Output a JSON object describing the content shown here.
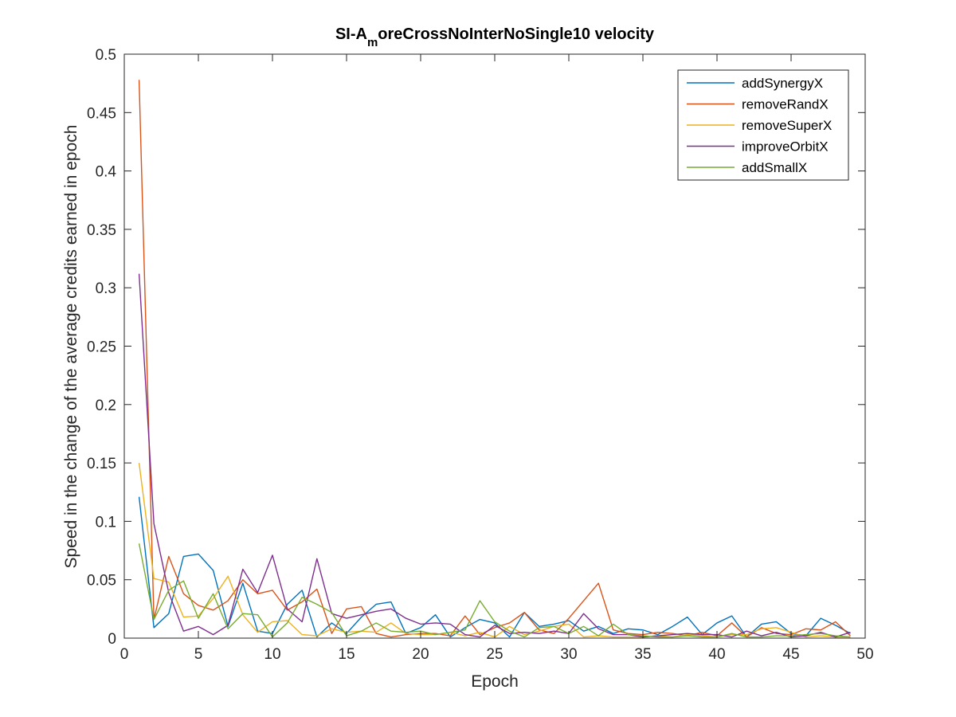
{
  "chart_data": {
    "type": "line",
    "title_main": "SI-A",
    "title_sub": "m",
    "title_rest": "oreCrossNoInterNoSingle10 velocity",
    "xlabel": "Epoch",
    "ylabel": "Speed in the change of the average credits earned in epoch",
    "xlim": [
      0,
      50
    ],
    "ylim": [
      0,
      0.5
    ],
    "xticks": [
      0,
      5,
      10,
      15,
      20,
      25,
      30,
      35,
      40,
      45,
      50
    ],
    "xtick_labels": [
      "0",
      "5",
      "10",
      "15",
      "20",
      "25",
      "30",
      "35",
      "40",
      "45",
      "50"
    ],
    "yticks": [
      0,
      0.05,
      0.1,
      0.15,
      0.2,
      0.25,
      0.3,
      0.35,
      0.4,
      0.45,
      0.5
    ],
    "ytick_labels": [
      "0",
      "0.05",
      "0.1",
      "0.15",
      "0.2",
      "0.25",
      "0.3",
      "0.35",
      "0.4",
      "0.45",
      "0.5"
    ],
    "grid": false,
    "legend_position": "top-right",
    "x": [
      1,
      2,
      3,
      4,
      5,
      6,
      7,
      8,
      9,
      10,
      11,
      12,
      13,
      14,
      15,
      16,
      17,
      18,
      19,
      20,
      21,
      22,
      23,
      24,
      25,
      26,
      27,
      28,
      29,
      30,
      31,
      32,
      33,
      34,
      35,
      36,
      37,
      38,
      39,
      40,
      41,
      42,
      43,
      44,
      45,
      46,
      47,
      48,
      49
    ],
    "series": [
      {
        "name": "addSynergyX",
        "color": "#0072BD",
        "values": [
          0.121,
          0.009,
          0.021,
          0.07,
          0.072,
          0.058,
          0.01,
          0.047,
          0.006,
          0.004,
          0.029,
          0.041,
          0.001,
          0.013,
          0.004,
          0.018,
          0.029,
          0.031,
          0.004,
          0.009,
          0.02,
          0.001,
          0.009,
          0.016,
          0.013,
          0.001,
          0.022,
          0.01,
          0.012,
          0.015,
          0.006,
          0.01,
          0.004,
          0.008,
          0.007,
          0.003,
          0.01,
          0.018,
          0.003,
          0.013,
          0.019,
          0.001,
          0.012,
          0.014,
          0.004,
          0.002,
          0.017,
          0.011,
          0.004
        ]
      },
      {
        "name": "removeRandX",
        "color": "#D95319",
        "values": [
          0.478,
          0.016,
          0.07,
          0.038,
          0.028,
          0.024,
          0.032,
          0.05,
          0.038,
          0.041,
          0.024,
          0.031,
          0.042,
          0.004,
          0.025,
          0.027,
          0.004,
          0.001,
          0.003,
          0.004,
          0.004,
          0.002,
          0.019,
          0.003,
          0.009,
          0.013,
          0.022,
          0.007,
          0.004,
          0.017,
          0.032,
          0.047,
          0.007,
          0.004,
          0.003,
          0.005,
          0.004,
          0.002,
          0.005,
          0.002,
          0.013,
          0.001,
          0.009,
          0.004,
          0.003,
          0.008,
          0.007,
          0.014,
          0.002
        ]
      },
      {
        "name": "removeSuperX",
        "color": "#EDB120",
        "values": [
          0.15,
          0.051,
          0.048,
          0.018,
          0.019,
          0.034,
          0.053,
          0.02,
          0.005,
          0.014,
          0.015,
          0.003,
          0.002,
          0.008,
          0.005,
          0.006,
          0.005,
          0.013,
          0.004,
          0.003,
          0.003,
          0.005,
          0.002,
          0.005,
          0.001,
          0.01,
          0.003,
          0.006,
          0.01,
          0.012,
          0.001,
          0.002,
          0.001,
          0.001,
          0.001,
          0.002,
          0.001,
          0.003,
          0.002,
          0.001,
          0.003,
          0.003,
          0.008,
          0.009,
          0.005,
          0.001,
          0.002,
          0.001,
          0.001
        ]
      },
      {
        "name": "improveOrbitX",
        "color": "#7E2F8E",
        "values": [
          0.312,
          0.098,
          0.039,
          0.006,
          0.01,
          0.003,
          0.011,
          0.059,
          0.039,
          0.071,
          0.025,
          0.014,
          0.068,
          0.021,
          0.017,
          0.02,
          0.023,
          0.025,
          0.017,
          0.012,
          0.013,
          0.012,
          0.003,
          0.001,
          0.011,
          0.004,
          0.005,
          0.004,
          0.006,
          0.004,
          0.021,
          0.008,
          0.003,
          0.003,
          0.001,
          0.002,
          0.003,
          0.004,
          0.003,
          0.003,
          0.001,
          0.006,
          0.002,
          0.005,
          0.001,
          0.002,
          0.005,
          0.001,
          0.005
        ]
      },
      {
        "name": "addSmallX",
        "color": "#77AC30",
        "values": [
          0.081,
          0.016,
          0.041,
          0.049,
          0.017,
          0.038,
          0.008,
          0.021,
          0.02,
          0.001,
          0.013,
          0.035,
          0.029,
          0.022,
          0.002,
          0.006,
          0.013,
          0.006,
          0.005,
          0.006,
          0.003,
          0.005,
          0.007,
          0.032,
          0.014,
          0.006,
          0.001,
          0.009,
          0.01,
          0.004,
          0.01,
          0.002,
          0.012,
          0.003,
          0.002,
          0.001,
          0.001,
          0.002,
          0.001,
          0.001,
          0.004,
          0.001,
          0.001,
          0.002,
          0.002,
          0.003,
          0.004,
          0.002,
          0.001
        ]
      }
    ]
  }
}
